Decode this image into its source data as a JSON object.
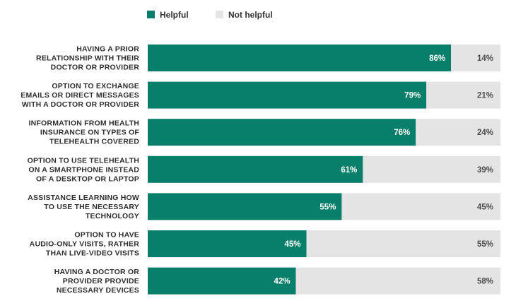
{
  "colors": {
    "helpful": "#087f6a",
    "not_helpful": "#e4e4e4",
    "helpful_text": "#ffffff",
    "not_helpful_text": "#4a4a4a"
  },
  "chart_data": {
    "type": "bar",
    "orientation": "horizontal",
    "stacked": true,
    "legend_position": "top",
    "grid": false,
    "xlim": [
      0,
      100
    ],
    "categories": [
      [
        "HAVING A PRIOR",
        "RELATIONSHIP WITH THEIR",
        "DOCTOR OR PROVIDER"
      ],
      [
        "OPTION TO EXCHANGE",
        "EMAILS OR DIRECT MESSAGES",
        "WITH A DOCTOR OR PROVIDER"
      ],
      [
        "INFORMATION FROM HEALTH",
        "INSURANCE ON TYPES OF",
        "TELEHEALTH COVERED"
      ],
      [
        "OPTION TO USE TELEHEALTH",
        "ON A SMARTPHONE INSTEAD",
        "OF A DESKTOP OR LAPTOP"
      ],
      [
        "ASSISTANCE LEARNING HOW",
        "TO USE THE NECESSARY",
        "TECHNOLOGY"
      ],
      [
        "OPTION TO HAVE",
        "AUDIO-ONLY VISITS, RATHER",
        "THAN LIVE-VIDEO VISITS"
      ],
      [
        "HAVING A DOCTOR OR",
        "PROVIDER PROVIDE",
        "NECESSARY DEVICES"
      ]
    ],
    "series": [
      {
        "name": "Helpful",
        "values": [
          86,
          79,
          76,
          61,
          55,
          45,
          42
        ],
        "labels": [
          "86%",
          "79%",
          "76%",
          "61%",
          "55%",
          "45%",
          "42%"
        ]
      },
      {
        "name": "Not helpful",
        "values": [
          14,
          21,
          24,
          39,
          45,
          55,
          58
        ],
        "labels": [
          "14%",
          "21%",
          "24%",
          "39%",
          "45%",
          "55%",
          "58%"
        ]
      }
    ]
  }
}
